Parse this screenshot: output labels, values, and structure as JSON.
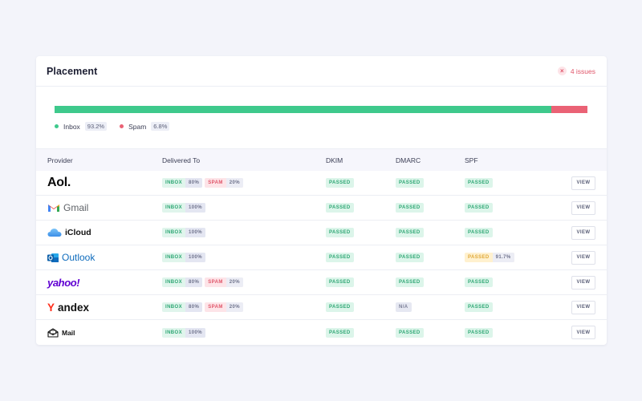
{
  "header": {
    "title": "Placement",
    "issues_label": "4 issues"
  },
  "summary": {
    "inbox_pct_value": 93.2,
    "spam_pct_value": 6.8,
    "inbox_label": "Inbox",
    "inbox_pct": "93.2%",
    "spam_label": "Spam",
    "spam_pct": "6.8%",
    "colors": {
      "inbox": "#3ec98c",
      "spam": "#ea6275"
    }
  },
  "table": {
    "columns": [
      "Provider",
      "Delivered To",
      "DKIM",
      "DMARC",
      "SPF"
    ],
    "view_label": "VIEW",
    "rows": [
      {
        "provider": "Aol.",
        "inbox_label": "INBOX",
        "inbox_pct": "80%",
        "spam_label": "SPAM",
        "spam_pct": "20%",
        "dkim": "PASSED",
        "dmarc": "PASSED",
        "spf": "PASSED",
        "spf_pct": ""
      },
      {
        "provider": "Gmail",
        "inbox_label": "INBOX",
        "inbox_pct": "100%",
        "spam_label": "",
        "spam_pct": "",
        "dkim": "PASSED",
        "dmarc": "PASSED",
        "spf": "PASSED",
        "spf_pct": ""
      },
      {
        "provider": "iCloud",
        "inbox_label": "INBOX",
        "inbox_pct": "100%",
        "spam_label": "",
        "spam_pct": "",
        "dkim": "PASSED",
        "dmarc": "PASSED",
        "spf": "PASSED",
        "spf_pct": ""
      },
      {
        "provider": "Outlook",
        "inbox_label": "INBOX",
        "inbox_pct": "100%",
        "spam_label": "",
        "spam_pct": "",
        "dkim": "PASSED",
        "dmarc": "PASSED",
        "spf": "PASSED",
        "spf_pct": "91.7%"
      },
      {
        "provider": "yahoo!",
        "inbox_label": "INBOX",
        "inbox_pct": "80%",
        "spam_label": "SPAM",
        "spam_pct": "20%",
        "dkim": "PASSED",
        "dmarc": "PASSED",
        "spf": "PASSED",
        "spf_pct": ""
      },
      {
        "provider": "Yandex",
        "inbox_label": "INBOX",
        "inbox_pct": "80%",
        "spam_label": "SPAM",
        "spam_pct": "20%",
        "dkim": "PASSED",
        "dmarc": "N/A",
        "spf": "PASSED",
        "spf_pct": ""
      },
      {
        "provider": "Mail",
        "inbox_label": "INBOX",
        "inbox_pct": "100%",
        "spam_label": "",
        "spam_pct": "",
        "dkim": "PASSED",
        "dmarc": "PASSED",
        "spf": "PASSED",
        "spf_pct": ""
      }
    ]
  },
  "icons": [
    "close-circle-icon",
    "gmail-icon",
    "icloud-icon",
    "outlook-icon",
    "mail-envelope-icon"
  ]
}
